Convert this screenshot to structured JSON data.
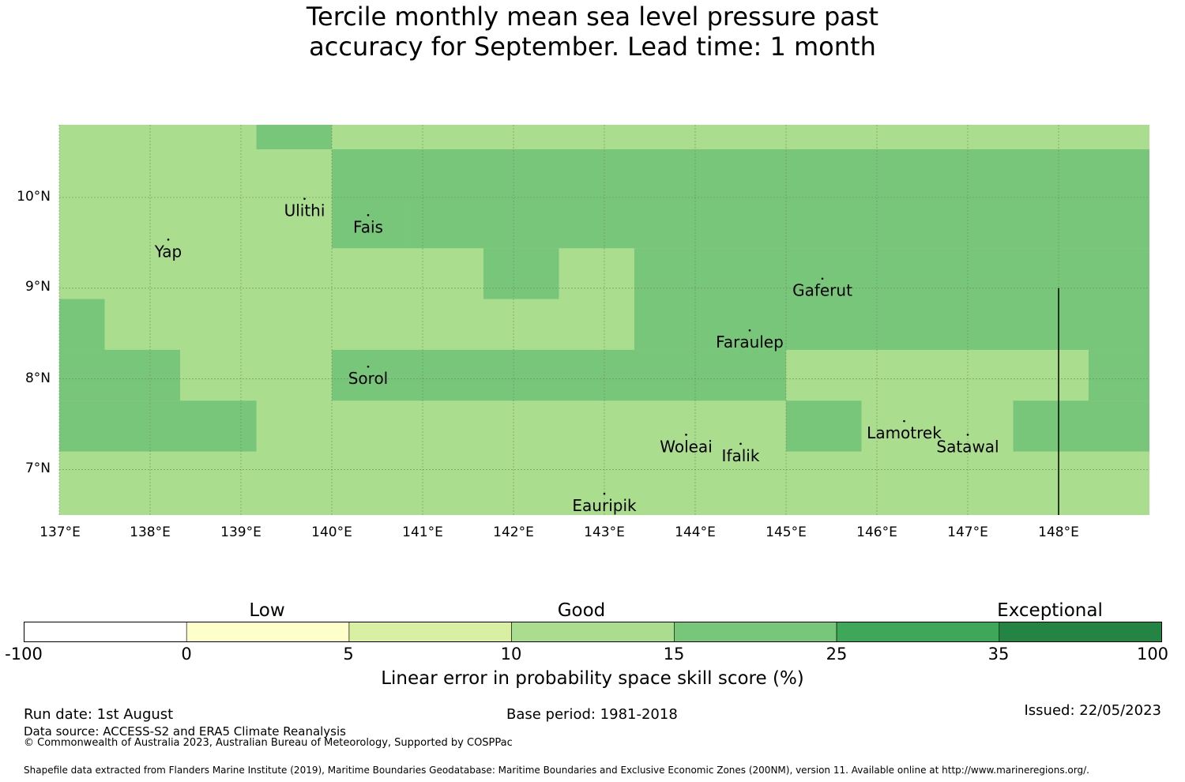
{
  "title": {
    "line1": "Tercile monthly mean sea level pressure past",
    "line2": "accuracy for September. Lead time: 1 month"
  },
  "map": {
    "lat_ticks": [
      "10°N",
      "9°N",
      "8°N",
      "7°N"
    ],
    "lon_ticks": [
      "137°E",
      "138°E",
      "139°E",
      "140°E",
      "141°E",
      "142°E",
      "143°E",
      "144°E",
      "145°E",
      "146°E",
      "147°E",
      "148°E"
    ],
    "extent": {
      "lon": [
        137,
        149
      ],
      "lat": [
        6.5,
        10.8
      ]
    },
    "colors": {
      "good": "#aadd8e",
      "good_plus": "#78c67a",
      "grid": "#6a8a5a"
    },
    "cell_size_deg": 0.833,
    "cells_15_25_lonlat": [
      [
        139.17,
        10.53,
        140,
        10.8
      ],
      [
        140,
        10,
        149,
        10.53
      ],
      [
        140,
        9.44,
        140.83,
        10
      ],
      [
        140.83,
        9.44,
        149,
        10
      ],
      [
        141.67,
        8.88,
        142.5,
        9.44
      ],
      [
        143.33,
        8.32,
        149,
        9.44
      ],
      [
        137,
        8.32,
        137.5,
        8.88
      ],
      [
        137,
        7.76,
        138.33,
        8.32
      ],
      [
        140,
        7.76,
        145,
        8.32
      ],
      [
        137,
        7.2,
        139.17,
        7.76
      ],
      [
        145,
        7.2,
        145.83,
        7.76
      ],
      [
        147.5,
        7.2,
        149,
        7.76
      ],
      [
        148.33,
        7.76,
        149,
        8.32
      ]
    ],
    "islands": [
      {
        "name": "Ulithi",
        "lon": 139.7,
        "lat": 9.95
      },
      {
        "name": "Fais",
        "lon": 140.4,
        "lat": 9.77
      },
      {
        "name": "Yap",
        "lon": 138.2,
        "lat": 9.5
      },
      {
        "name": "Gaferut",
        "lon": 145.4,
        "lat": 9.07
      },
      {
        "name": "Faraulep",
        "lon": 144.6,
        "lat": 8.5
      },
      {
        "name": "Sorol",
        "lon": 140.4,
        "lat": 8.1
      },
      {
        "name": "Woleai",
        "lon": 143.9,
        "lat": 7.35
      },
      {
        "name": "Ifalik",
        "lon": 144.5,
        "lat": 7.25
      },
      {
        "name": "Lamotrek",
        "lon": 146.3,
        "lat": 7.5
      },
      {
        "name": "Satawal",
        "lon": 147.0,
        "lat": 7.35
      },
      {
        "name": "Eauripik",
        "lon": 143.0,
        "lat": 6.7
      }
    ]
  },
  "colorbar": {
    "categories": [
      "Low",
      "Good",
      "Exceptional"
    ],
    "ticks": [
      "-100",
      "0",
      "5",
      "10",
      "15",
      "25",
      "35",
      "100"
    ],
    "bin_colors": [
      "#ffffff",
      "#ffffcc",
      "#d9f0a3",
      "#aadd8e",
      "#78c67a",
      "#3ea75a",
      "#238443"
    ],
    "label": "Linear error in probability space skill score (%)"
  },
  "footer": {
    "run_date": "Run date: 1st August",
    "base_period": "Base period: 1981-2018",
    "issued": "Issued: 22/05/2023",
    "data_source": "Data source: ACCESS-S2 and ERA5 Climate Reanalysis",
    "copyright": "© Commonwealth of Australia 2023, Australian Bureau of Meteorology, Supported by COSPPac",
    "shapefile": "Shapefile data extracted from Flanders Marine Institute (2019), Maritime Boundaries Geodatabase: Maritime Boundaries and Exclusive Economic Zones (200NM), version 11. Available online at http://www.marineregions.org/."
  }
}
